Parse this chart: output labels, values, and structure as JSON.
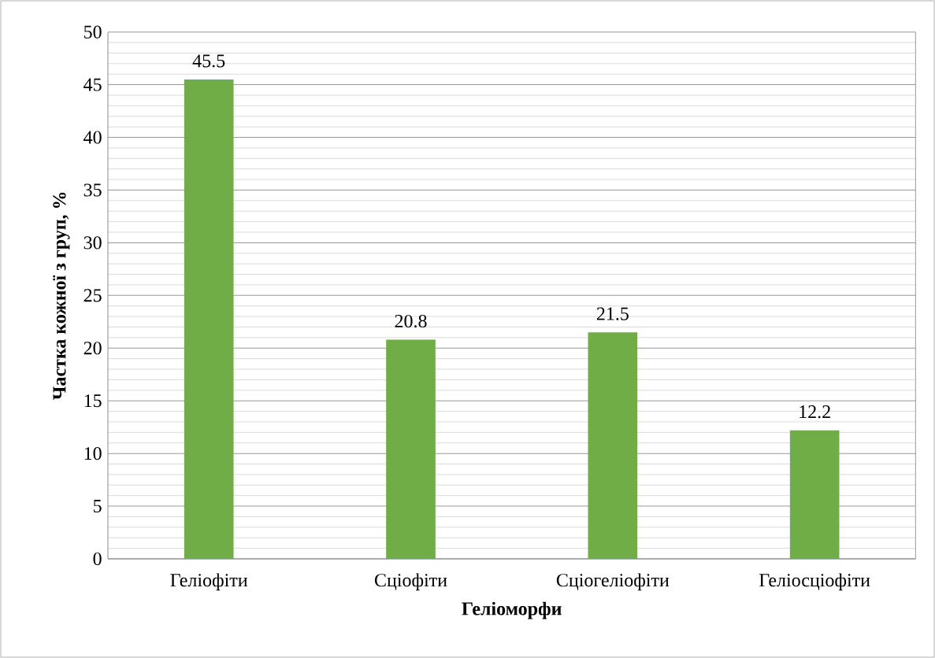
{
  "chart_data": {
    "type": "bar",
    "xlabel": "Геліоморфи",
    "ylabel": "Частка кожної з груп, %",
    "categories": [
      "Геліофіти",
      "Сціофіти",
      "Сціогеліофіти",
      "Геліосціофіти"
    ],
    "values": [
      45.5,
      20.8,
      21.5,
      12.2
    ],
    "color": "#70ad47",
    "data_labels": true,
    "ylim": [
      0,
      50
    ],
    "yticks": [
      0,
      5,
      10,
      15,
      20,
      25,
      30,
      35,
      40,
      45,
      50
    ],
    "grid": "y"
  }
}
